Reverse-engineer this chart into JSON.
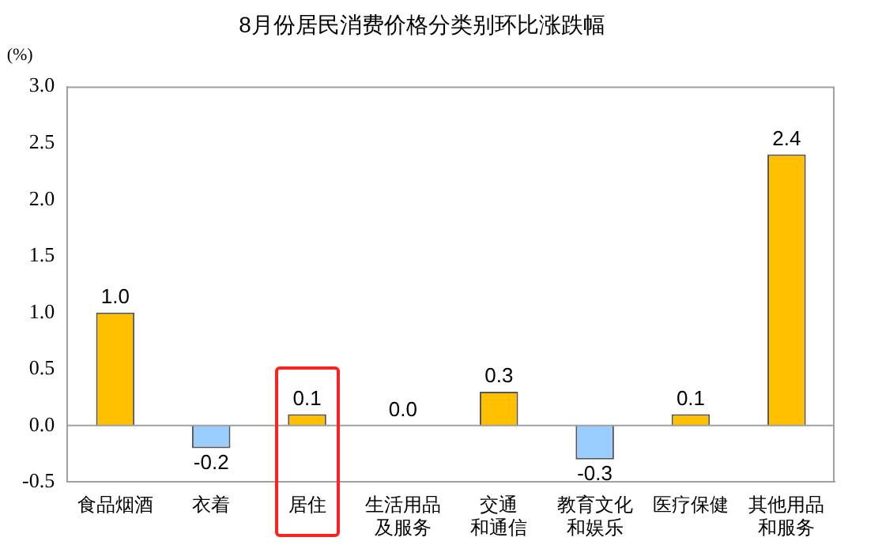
{
  "chart_data": {
    "type": "bar",
    "title": "8月份居民消费价格分类别环比涨跌幅",
    "ylabel": "(%)",
    "categories": [
      "食品烟酒",
      "衣着",
      "居住",
      "生活用品及服务",
      "交通和通信",
      "教育文化和娱乐",
      "医疗保健",
      "其他用品和服务"
    ],
    "values": [
      1.0,
      -0.2,
      0.1,
      0.0,
      0.3,
      -0.3,
      0.1,
      2.4
    ],
    "colors": [
      "#ffc000",
      "#99ccff",
      "#ffc000",
      "#ffc000",
      "#ffc000",
      "#99ccff",
      "#ffc000",
      "#ffc000"
    ],
    "value_labels": [
      "1.0",
      "-0.2",
      "0.1",
      "0.0",
      "0.3",
      "-0.3",
      "0.1",
      "2.4"
    ],
    "ylim": [
      -0.5,
      3.0
    ],
    "yticks": [
      {
        "value": -0.5,
        "label": "-0.5"
      },
      {
        "value": 0,
        "label": "0.0"
      },
      {
        "value": 0.5,
        "label": "0.5"
      },
      {
        "value": 1,
        "label": "1.0"
      },
      {
        "value": 1.5,
        "label": "1.5"
      },
      {
        "value": 2,
        "label": "2.0"
      },
      {
        "value": 2.5,
        "label": "2.5"
      },
      {
        "value": 3,
        "label": "3.0"
      }
    ],
    "ref_lines": [
      {
        "axis": "y",
        "value": 0,
        "color": "#a0a0a0"
      }
    ],
    "grid": false,
    "legend": false
  }
}
